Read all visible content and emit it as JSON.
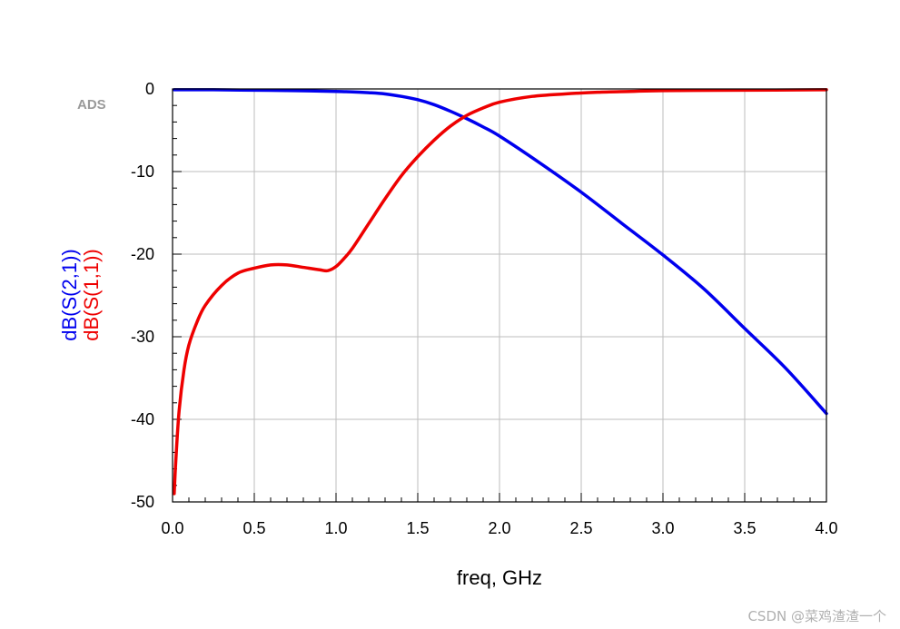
{
  "brand_tag": "ADS",
  "watermark": "CSDN @菜鸡渣渣一个",
  "chart_data": {
    "type": "line",
    "xlabel": "freq, GHz",
    "xlim": [
      0,
      4.0
    ],
    "ylim": [
      -50,
      0
    ],
    "x_ticks": [
      0.0,
      0.5,
      1.0,
      1.5,
      2.0,
      2.5,
      3.0,
      3.5,
      4.0
    ],
    "x_tick_labels": [
      "0.0",
      "0.5",
      "1.0",
      "1.5",
      "2.0",
      "2.5",
      "3.0",
      "3.5",
      "4.0"
    ],
    "y_ticks": [
      0,
      -10,
      -20,
      -30,
      -40,
      -50
    ],
    "y_tick_labels": [
      "0",
      "-10",
      "-20",
      "-30",
      "-40",
      "-50"
    ],
    "grid": true,
    "series": [
      {
        "name": "dB(S(2,1))",
        "color": "#0000ee",
        "x": [
          0.01,
          0.25,
          0.5,
          0.75,
          1.0,
          1.1,
          1.2,
          1.3,
          1.4,
          1.5,
          1.6,
          1.7,
          1.8,
          1.9,
          2.0,
          2.25,
          2.5,
          2.75,
          3.0,
          3.25,
          3.5,
          3.75,
          4.0
        ],
        "y": [
          -0.1,
          -0.1,
          -0.15,
          -0.2,
          -0.3,
          -0.35,
          -0.45,
          -0.6,
          -0.9,
          -1.3,
          -1.9,
          -2.7,
          -3.6,
          -4.6,
          -5.7,
          -9.0,
          -12.5,
          -16.3,
          -20.1,
          -24.2,
          -29.0,
          -33.8,
          -39.3
        ]
      },
      {
        "name": "dB(S(1,1))",
        "color": "#ee0000",
        "x": [
          0.01,
          0.02,
          0.04,
          0.07,
          0.1,
          0.15,
          0.2,
          0.3,
          0.4,
          0.5,
          0.6,
          0.7,
          0.8,
          0.9,
          0.95,
          1.0,
          1.05,
          1.1,
          1.2,
          1.3,
          1.4,
          1.5,
          1.6,
          1.7,
          1.8,
          1.9,
          2.0,
          2.2,
          2.4,
          2.6,
          2.8,
          3.0,
          3.5,
          4.0
        ],
        "y": [
          -49.0,
          -45.0,
          -39.0,
          -34.0,
          -31.0,
          -28.2,
          -26.2,
          -23.8,
          -22.3,
          -21.7,
          -21.3,
          -21.3,
          -21.6,
          -21.9,
          -22.0,
          -21.5,
          -20.5,
          -19.3,
          -16.3,
          -13.3,
          -10.5,
          -8.2,
          -6.2,
          -4.5,
          -3.2,
          -2.3,
          -1.6,
          -0.9,
          -0.6,
          -0.4,
          -0.3,
          -0.2,
          -0.15,
          -0.1
        ]
      }
    ]
  }
}
